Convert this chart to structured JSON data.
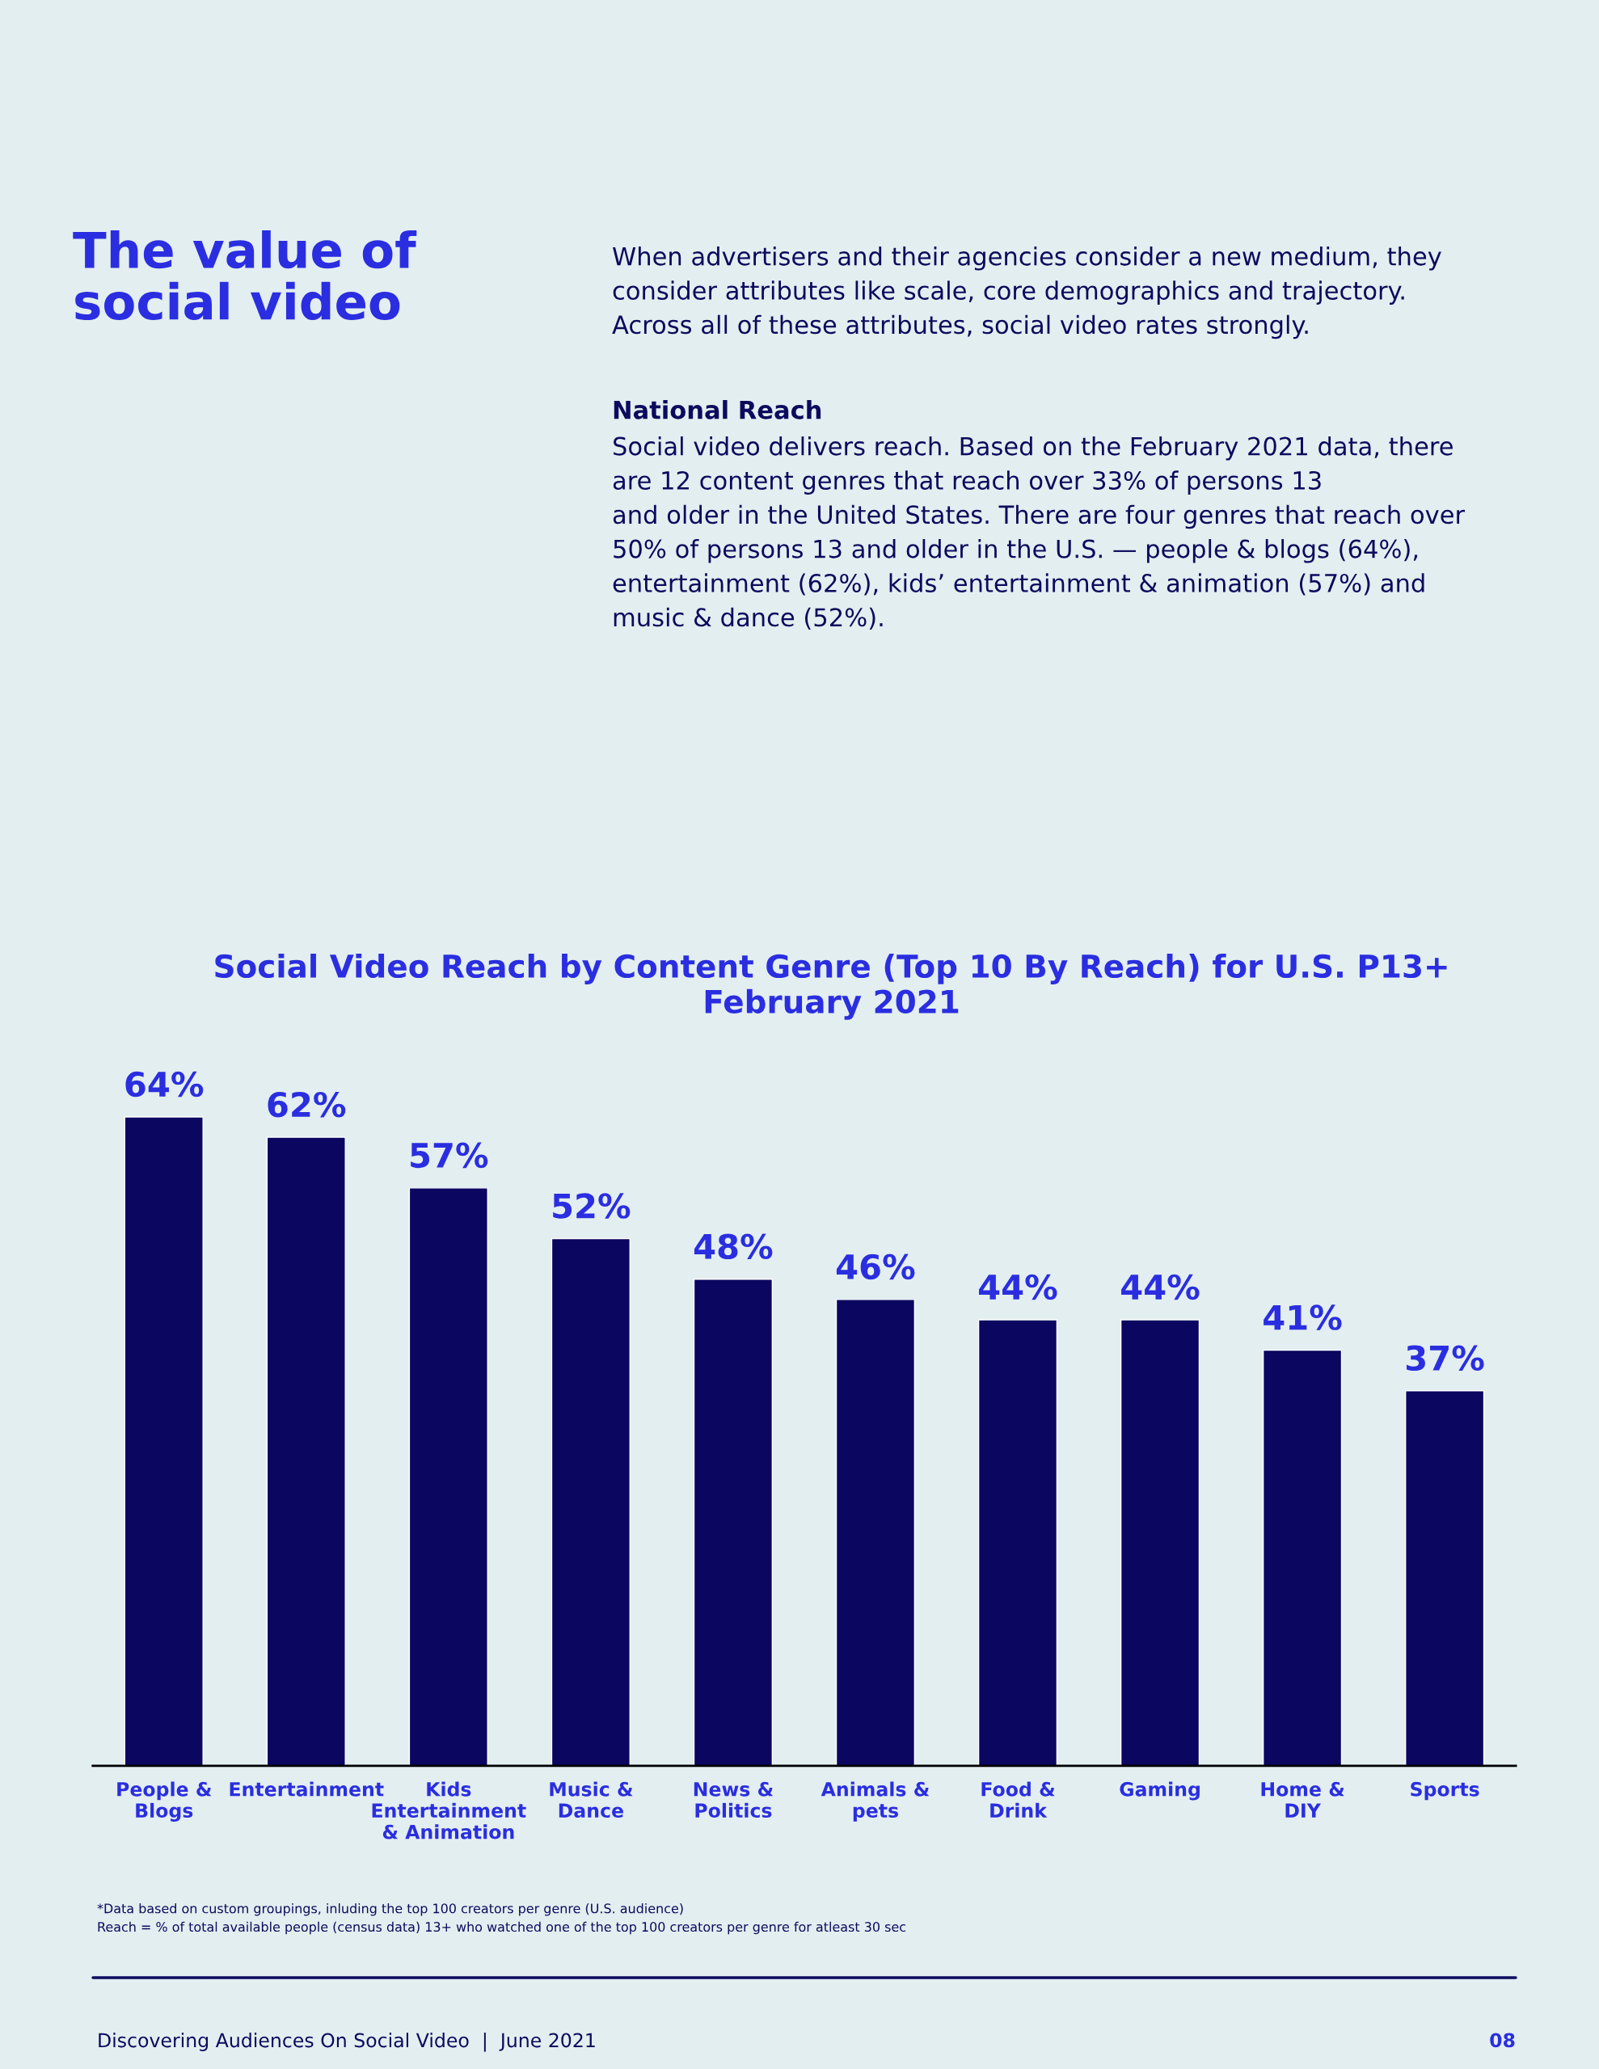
{
  "chart_data": {
    "type": "bar",
    "title": "Social Video Reach by Content Genre (Top 10 By Reach) for U.S. P13+\nFebruary 2021",
    "categories": [
      "People &\nBlogs",
      "Entertainment",
      "Kids\nEntertainment\n& Animation",
      "Music &\nDance",
      "News &\nPolitics",
      "Animals &\npets",
      "Food &\nDrink",
      "Gaming",
      "Home &\nDIY",
      "Sports"
    ],
    "values": [
      64,
      62,
      57,
      52,
      48,
      46,
      44,
      44,
      41,
      37
    ],
    "value_labels": [
      "64%",
      "62%",
      "57%",
      "52%",
      "48%",
      "46%",
      "44%",
      "44%",
      "41%",
      "37%"
    ],
    "color": "#0b0660",
    "grid": false,
    "legend": false,
    "annotations": [
      "The value of\nsocial video",
      "When advertisers and their agencies consider a new medium, they\nconsider attributes like scale, core demographics and trajectory.\nAcross all of these attributes, social video rates strongly.",
      "National Reach",
      "Social video delivers reach. Based on the February 2021 data, there\nare 12 content genres that reach over 33% of persons 13\nand older in the United States. There are four genres that reach over\n50% of persons 13 and older in the U.S. — people & blogs (64%),\nentertainment (62%), kids’ entertainment & animation (57%) and\nmusic & dance (52%).",
      "*Data based on custom groupings, inluding the top 100 creators per genre (U.S. audience)\nReach = % of total available people (census data) 13+ who watched one of the top 100 creators per genre for atleast 30 sec",
      "Discovering Audiences On Social Video  |  June 2021",
      "08"
    ]
  }
}
